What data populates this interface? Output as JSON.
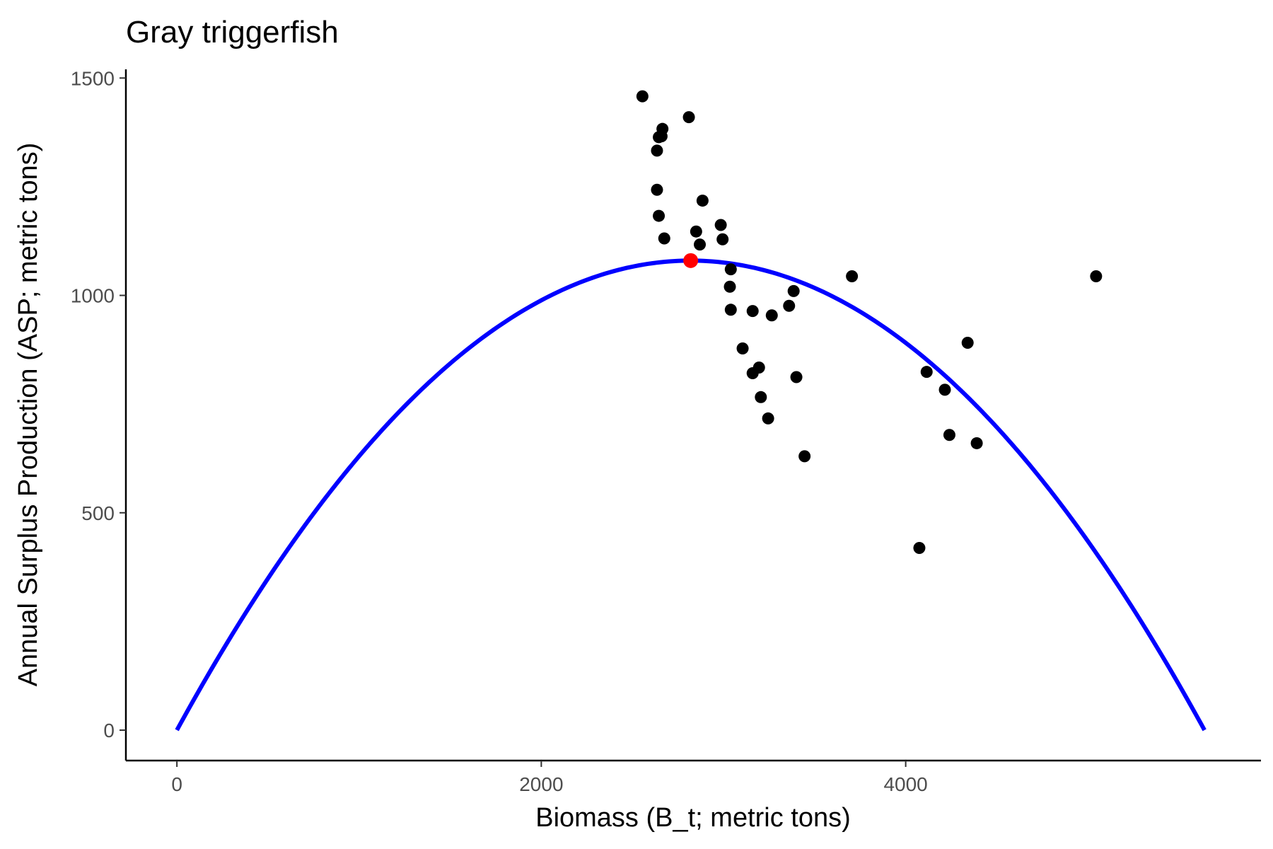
{
  "chart_data": {
    "type": "scatter",
    "title": "Gray triggerfish",
    "xlabel": "Biomass (B_t; metric tons)",
    "ylabel": "Annual Surplus Production (ASP; metric tons)",
    "xlim": [
      -280,
      5950
    ],
    "ylim": [
      -70,
      1520
    ],
    "x_ticks": [
      0,
      2000,
      4000
    ],
    "y_ticks": [
      0,
      500,
      1000,
      1500
    ],
    "grid": false,
    "series": [
      {
        "type": "scatter",
        "color": "#000000",
        "points": [
          {
            "x": 2555,
            "y": 1458
          },
          {
            "x": 2810,
            "y": 1410
          },
          {
            "x": 2665,
            "y": 1383
          },
          {
            "x": 2660,
            "y": 1366
          },
          {
            "x": 2645,
            "y": 1364
          },
          {
            "x": 2635,
            "y": 1333
          },
          {
            "x": 2635,
            "y": 1243
          },
          {
            "x": 2885,
            "y": 1218
          },
          {
            "x": 2645,
            "y": 1183
          },
          {
            "x": 2985,
            "y": 1162
          },
          {
            "x": 2850,
            "y": 1147
          },
          {
            "x": 2675,
            "y": 1131
          },
          {
            "x": 2995,
            "y": 1129
          },
          {
            "x": 2870,
            "y": 1117
          },
          {
            "x": 3040,
            "y": 1060
          },
          {
            "x": 3035,
            "y": 1020
          },
          {
            "x": 3705,
            "y": 1044
          },
          {
            "x": 5045,
            "y": 1044
          },
          {
            "x": 3385,
            "y": 1010
          },
          {
            "x": 3360,
            "y": 976
          },
          {
            "x": 3040,
            "y": 967
          },
          {
            "x": 3160,
            "y": 964
          },
          {
            "x": 3265,
            "y": 954
          },
          {
            "x": 4340,
            "y": 891
          },
          {
            "x": 3105,
            "y": 878
          },
          {
            "x": 3195,
            "y": 834
          },
          {
            "x": 4115,
            "y": 824
          },
          {
            "x": 3160,
            "y": 821
          },
          {
            "x": 3400,
            "y": 812
          },
          {
            "x": 4215,
            "y": 783
          },
          {
            "x": 3205,
            "y": 766
          },
          {
            "x": 3245,
            "y": 717
          },
          {
            "x": 4240,
            "y": 679
          },
          {
            "x": 4390,
            "y": 660
          },
          {
            "x": 3445,
            "y": 630
          },
          {
            "x": 4075,
            "y": 419
          }
        ]
      },
      {
        "type": "line",
        "color": "#0000ff",
        "curve": "parabola",
        "x": [
          0,
          2820,
          5640
        ],
        "y": [
          0,
          1080,
          0
        ]
      },
      {
        "type": "point",
        "color": "#ff0000",
        "points": [
          {
            "x": 2820,
            "y": 1080
          }
        ]
      }
    ]
  }
}
